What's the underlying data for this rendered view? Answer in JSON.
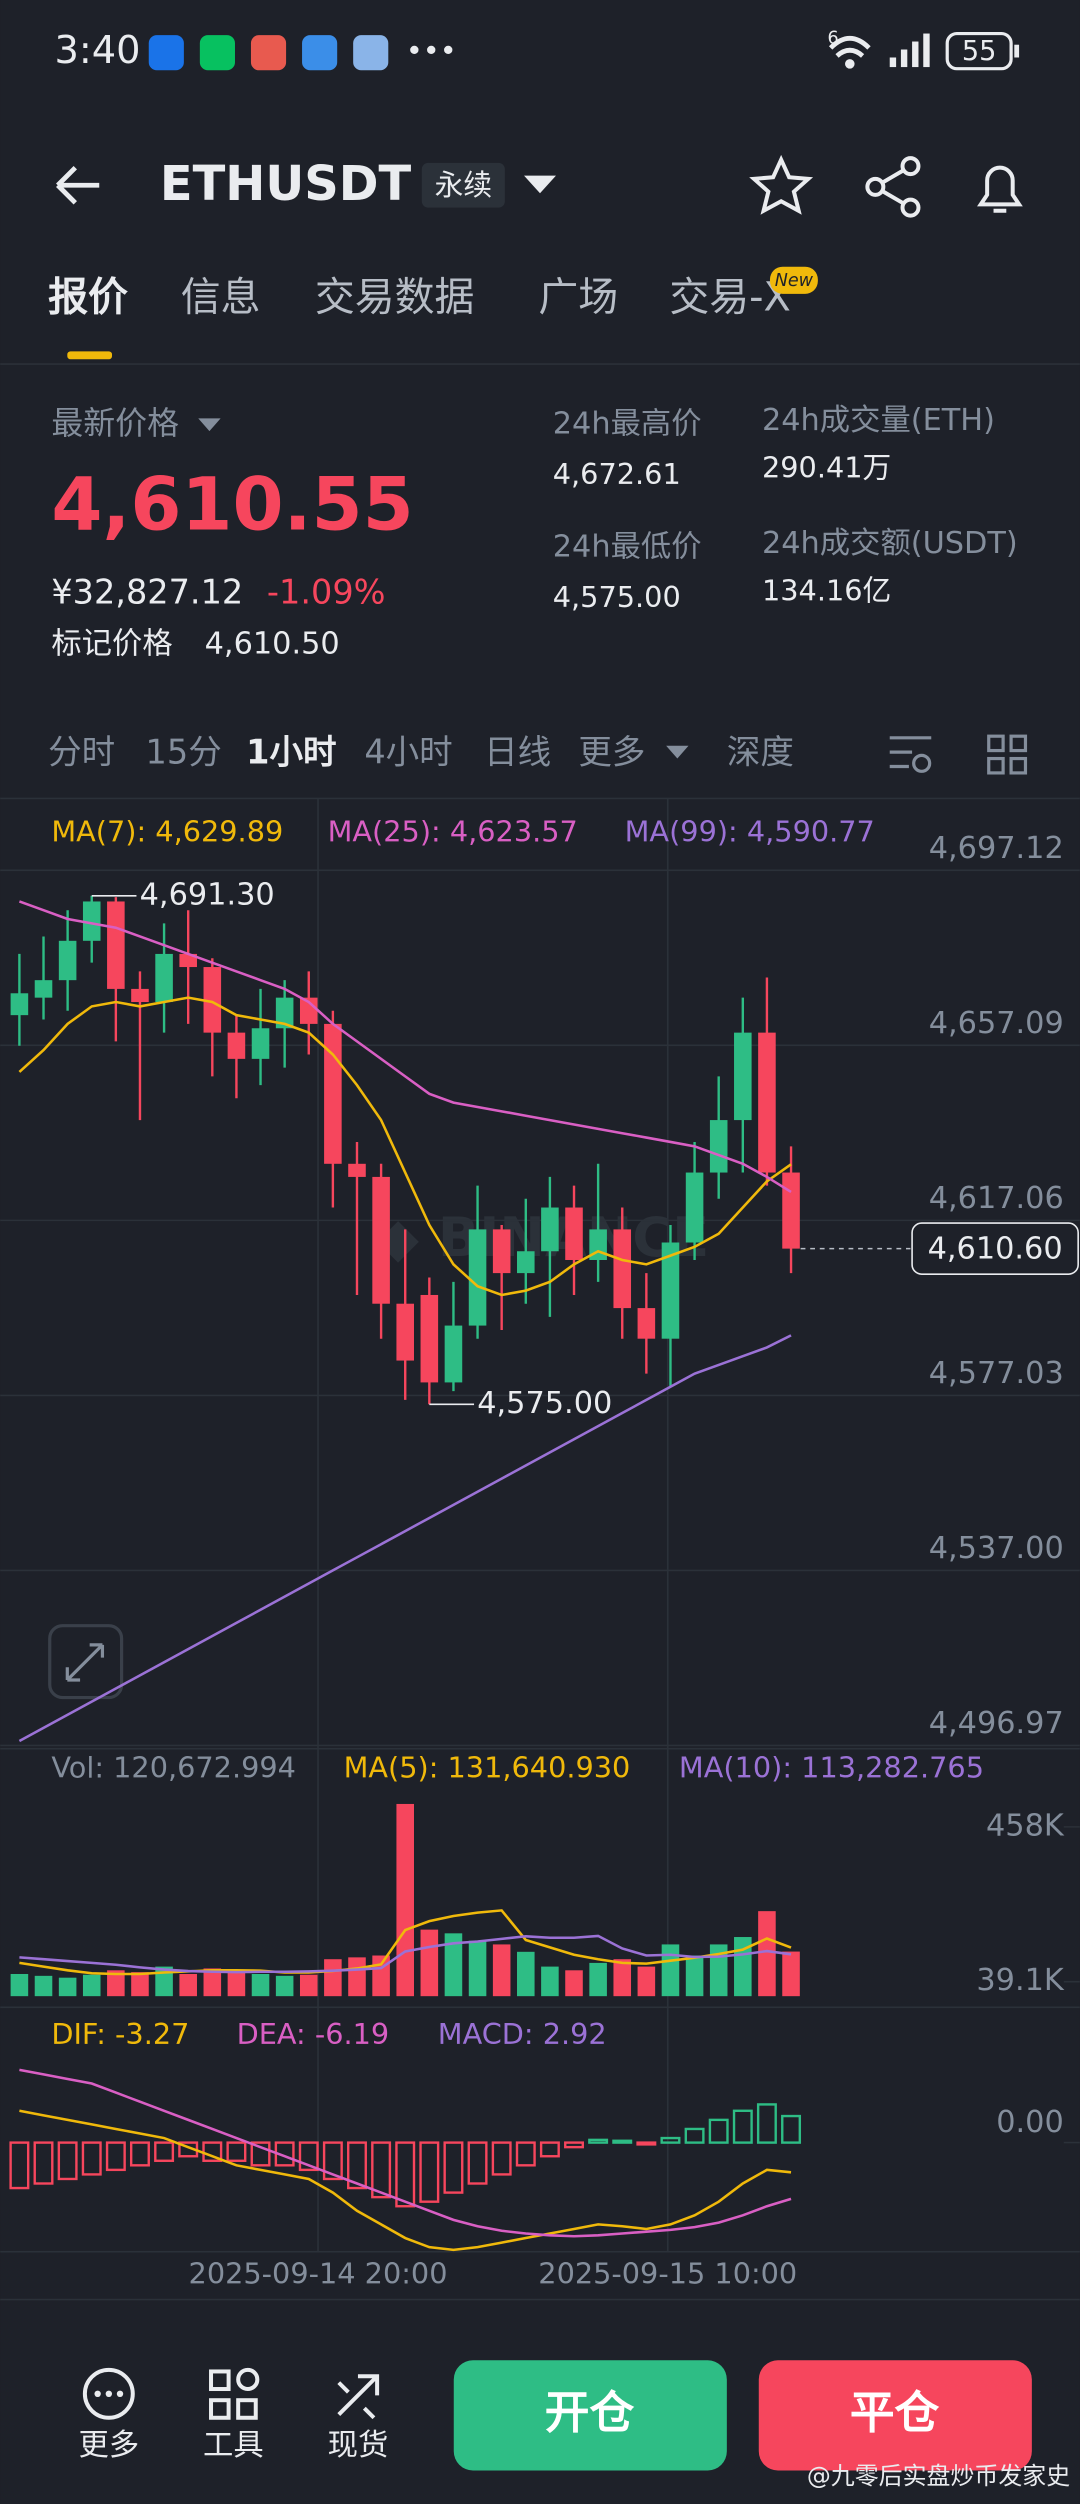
{
  "status": {
    "time": "3:40",
    "battery": "55",
    "network": "6"
  },
  "header": {
    "symbol": "ETHUSDT",
    "tag": "永续"
  },
  "tabs": {
    "items": [
      "报价",
      "信息",
      "交易数据",
      "广场",
      "交易-X"
    ],
    "badge": "New"
  },
  "stats": {
    "last_price_label": "最新价格",
    "last_price": "4,610.55",
    "cny": "¥32,827.12",
    "change": "-1.09%",
    "mark_label": "标记价格",
    "mark": "4,610.50",
    "high_label": "24h最高价",
    "high": "4,672.61",
    "low_label": "24h最低价",
    "low": "4,575.00",
    "vol_label": "24h成交量(ETH)",
    "vol": "290.41万",
    "turnover_label": "24h成交额(USDT)",
    "turnover": "134.16亿"
  },
  "intervals": [
    "分时",
    "15分",
    "1小时",
    "4小时",
    "日线",
    "更多",
    "深度"
  ],
  "chart_data": {
    "type": "candlestick",
    "up_color": "#2ebd85",
    "down_color": "#f6465d",
    "ylim": [
      4496.97,
      4697.12
    ],
    "yticks": [
      {
        "value": 4697.12,
        "label": "4,697.12"
      },
      {
        "value": 4657.09,
        "label": "4,657.09"
      },
      {
        "value": 4617.06,
        "label": "4,617.06"
      },
      {
        "value": 4577.03,
        "label": "4,577.03"
      },
      {
        "value": 4537.0,
        "label": "4,537.00"
      },
      {
        "value": 4496.97,
        "label": "4,496.97"
      }
    ],
    "candles": {
      "open": [
        4664,
        4668,
        4672,
        4681,
        4690,
        4670,
        4667,
        4678,
        4675,
        4660,
        4654,
        4661,
        4668,
        4662,
        4630,
        4627,
        4598,
        4600,
        4580,
        4593,
        4615,
        4605,
        4610,
        4620,
        4608,
        4615,
        4597,
        4590,
        4612,
        4628,
        4640,
        4660,
        4628
      ],
      "high": [
        4678,
        4682,
        4688,
        4691.3,
        4691,
        4674,
        4685,
        4688,
        4677,
        4664,
        4670,
        4672,
        4674,
        4665,
        4635,
        4630,
        4615,
        4604,
        4603,
        4625,
        4616,
        4622,
        4627,
        4625,
        4630,
        4620,
        4605,
        4616,
        4635,
        4650,
        4668,
        4672.61,
        4634
      ],
      "low": [
        4657,
        4663,
        4665,
        4676,
        4658,
        4640,
        4660,
        4662,
        4650,
        4645,
        4648,
        4652,
        4655,
        4620,
        4600,
        4590,
        4576,
        4575,
        4578,
        4590,
        4592,
        4598,
        4595,
        4600,
        4603,
        4590,
        4582,
        4579,
        4608,
        4622,
        4628,
        4625,
        4605
      ],
      "close": [
        4669,
        4672,
        4681,
        4690,
        4670,
        4667,
        4678,
        4675,
        4660,
        4654,
        4661,
        4668,
        4662,
        4630,
        4627,
        4598,
        4585,
        4580,
        4593,
        4615,
        4605,
        4610,
        4620,
        4608,
        4615,
        4597,
        4590,
        4612,
        4628,
        4640,
        4660,
        4628,
        4610.6
      ]
    },
    "ma_lines": [
      {
        "label": "MA(7): 4,629.89",
        "color": "#f0b90b",
        "values": [
          4651,
          4656,
          4662,
          4666,
          4667,
          4666,
          4667,
          4668,
          4667,
          4664,
          4663,
          4662,
          4660,
          4655,
          4648,
          4640,
          4628,
          4616,
          4607,
          4602,
          4600,
          4601,
          4603,
          4607,
          4610,
          4608,
          4607,
          4609,
          4611,
          4614,
          4620,
          4626,
          4629.89
        ]
      },
      {
        "label": "MA(25): 4,623.57",
        "color": "#d95fc4",
        "values": [
          4690,
          4688,
          4686,
          4685,
          4684,
          4682,
          4680,
          4678,
          4676,
          4674,
          4672,
          4670,
          4667,
          4662,
          4658,
          4654,
          4650,
          4646,
          4644,
          4643,
          4642,
          4641,
          4640,
          4639,
          4638,
          4637,
          4636,
          4635,
          4634,
          4632,
          4630,
          4627,
          4623.57
        ]
      },
      {
        "label": "MA(99): 4,590.77",
        "color": "#9b72d6",
        "values": [
          4498,
          4501,
          4504,
          4507,
          4510,
          4513,
          4516,
          4519,
          4522,
          4525,
          4528,
          4531,
          4534,
          4537,
          4540,
          4543,
          4546,
          4549,
          4552,
          4555,
          4558,
          4561,
          4564,
          4567,
          4570,
          4573,
          4576,
          4579,
          4582,
          4584,
          4586,
          4588,
          4590.77
        ]
      }
    ],
    "last_price": {
      "value": 4610.6,
      "label": "4,610.60"
    },
    "max_label": {
      "value": 4691.3,
      "label": "4,691.30"
    },
    "min_label": {
      "value": 4575.0,
      "label": "4,575.00"
    },
    "x_labels": [
      "2025-09-14 20:00",
      "2025-09-15 10:00"
    ],
    "volume": {
      "label": "Vol: 120,672.994",
      "ylim": [
        0,
        540000
      ],
      "yticks": [
        {
          "value": 458000,
          "label": "458K"
        },
        {
          "value": 39100,
          "label": "39.1K"
        }
      ],
      "values": [
        60000,
        55000,
        50000,
        58000,
        70000,
        65000,
        80000,
        60000,
        75000,
        72000,
        60000,
        55000,
        58000,
        100000,
        105000,
        110000,
        520000,
        180000,
        170000,
        150000,
        140000,
        120000,
        80000,
        70000,
        90000,
        100000,
        80000,
        140000,
        110000,
        140000,
        160000,
        230000,
        120672.994
      ],
      "ma_lines": [
        {
          "label": "MA(5): 131,640.930",
          "color": "#f0b90b",
          "values": [
            90000,
            80000,
            70000,
            62000,
            60000,
            60000,
            64000,
            67000,
            70000,
            70000,
            69000,
            64000,
            64000,
            68000,
            75000,
            86000,
            179000,
            203000,
            217000,
            226000,
            232000,
            152000,
            132000,
            112000,
            100000,
            90000,
            88000,
            96000,
            104000,
            114000,
            126000,
            156000,
            131640.93
          ]
        },
        {
          "label": "MA(10): 113,282.765",
          "color": "#9b72d6",
          "values": [
            105000,
            100000,
            95000,
            90000,
            85000,
            78000,
            72000,
            68000,
            66000,
            65000,
            66000,
            66000,
            67000,
            69000,
            72000,
            76000,
            121000,
            133000,
            143000,
            148000,
            155000,
            162000,
            158000,
            158000,
            163000,
            129000,
            110000,
            112000,
            106000,
            107000,
            113000,
            122000,
            113282.765
          ]
        }
      ]
    },
    "macd": {
      "labels": [
        "DIF: -3.27",
        "DEA: -6.19",
        "MACD: 2.92"
      ],
      "colors": [
        "#f0b90b",
        "#d95fc4",
        "#9b72d6"
      ],
      "ylim": [
        -12,
        14
      ],
      "yticks": [
        {
          "value": 0,
          "label": "0.00"
        }
      ],
      "hist": [
        -5,
        -4.5,
        -4,
        -3.5,
        -3,
        -2.5,
        -2,
        -1.5,
        -2,
        -2,
        -2.5,
        -2.5,
        -3,
        -4,
        -5,
        -6,
        -7,
        -6.5,
        -5.5,
        -4.5,
        -3.5,
        -2.5,
        -1.5,
        -0.5,
        0.3,
        0.2,
        -0.2,
        0.5,
        1.5,
        2.5,
        3.5,
        4.2,
        2.92
      ],
      "dif": [
        3.5,
        3,
        2.5,
        2,
        1.5,
        1,
        0.5,
        -0.5,
        -1.5,
        -2.5,
        -3,
        -3.5,
        -4,
        -5.5,
        -7.5,
        -9,
        -10.5,
        -11.5,
        -11.8,
        -11.5,
        -11,
        -10.5,
        -10,
        -9.5,
        -9,
        -9.2,
        -9.5,
        -9,
        -8,
        -6.5,
        -4.5,
        -3,
        -3.27
      ],
      "dea": [
        8,
        7.5,
        7,
        6.5,
        5.5,
        4.5,
        3.5,
        2.5,
        1.5,
        0.5,
        -0.5,
        -1.5,
        -2.5,
        -3.5,
        -4.5,
        -5.5,
        -6.5,
        -7.5,
        -8.5,
        -9.2,
        -9.7,
        -10,
        -10.2,
        -10.3,
        -10.2,
        -10,
        -9.8,
        -9.6,
        -9.3,
        -8.8,
        -8,
        -7,
        -6.19
      ]
    }
  },
  "bottom": {
    "more": "更多",
    "tools": "工具",
    "spot": "现货",
    "open": "开仓",
    "close": "平仓",
    "watermark": "@九零后实盘炒币发家史"
  }
}
